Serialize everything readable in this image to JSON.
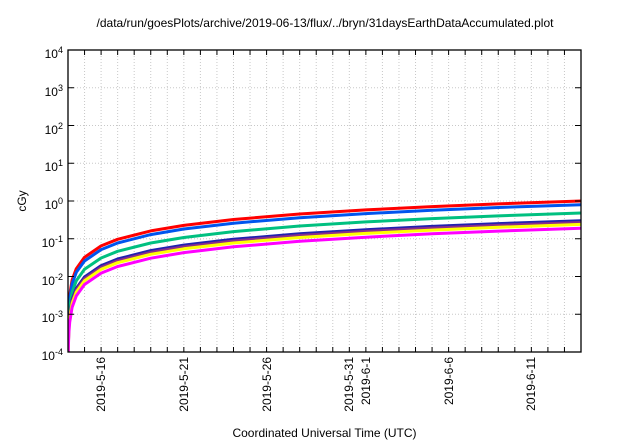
{
  "window": {
    "background_color": "#ffffff"
  },
  "chart_data": {
    "type": "line",
    "title": "/data/run/goesPlots/archive/2019-06-13/flux/../bryn/31daysEarthDataAccumulated.plot",
    "xlabel": "Coordinated Universal Time (UTC)",
    "ylabel": "cGy",
    "legend": "none",
    "grid": {
      "vertical_interval_days": 1,
      "horizontal_per_decade": true,
      "style": "dotted",
      "color": "#c8c8c8"
    },
    "x_axis": {
      "scale": "linear-time",
      "start": "2019-05-14",
      "end": "2019-06-14",
      "span_days": 31,
      "minor_tick_interval_days": 1,
      "major_ticks": [
        {
          "day": 2,
          "label": "2019-5-16"
        },
        {
          "day": 7,
          "label": "2019-5-21"
        },
        {
          "day": 12,
          "label": "2019-5-26"
        },
        {
          "day": 17,
          "label": "2019-5-31"
        },
        {
          "day": 18,
          "label": "2019-6-1"
        },
        {
          "day": 23,
          "label": "2019-6-6"
        },
        {
          "day": 28,
          "label": "2019-6-11"
        }
      ]
    },
    "y_axis": {
      "scale": "log10",
      "min": 0.0001,
      "max": 10000,
      "tick_exponents": [
        4,
        3,
        2,
        1,
        0,
        -1,
        -2,
        -3,
        -4
      ],
      "tick_label_base": "10"
    },
    "series": [
      {
        "name": "red",
        "color": "#ff0000",
        "final_cGy": 1.0,
        "points": [
          [
            0.003,
            0.0001
          ],
          [
            0.01,
            0.000323
          ],
          [
            0.05,
            0.00161
          ],
          [
            0.1,
            0.00323
          ],
          [
            0.25,
            0.00806
          ],
          [
            0.5,
            0.0161
          ],
          [
            1,
            0.0323
          ],
          [
            2,
            0.0645
          ],
          [
            3,
            0.0968
          ],
          [
            5,
            0.161
          ],
          [
            7,
            0.226
          ],
          [
            10,
            0.323
          ],
          [
            14,
            0.452
          ],
          [
            18,
            0.581
          ],
          [
            22,
            0.71
          ],
          [
            26,
            0.839
          ],
          [
            31,
            1.0
          ]
        ]
      },
      {
        "name": "blue",
        "color": "#0055ee",
        "final_cGy": 0.8,
        "points": [
          [
            0.003,
            0.0001
          ],
          [
            0.01,
            0.000258
          ],
          [
            0.05,
            0.00129
          ],
          [
            0.1,
            0.00258
          ],
          [
            0.25,
            0.00645
          ],
          [
            0.5,
            0.0129
          ],
          [
            1,
            0.0258
          ],
          [
            2,
            0.0516
          ],
          [
            3,
            0.0774
          ],
          [
            5,
            0.129
          ],
          [
            7,
            0.181
          ],
          [
            10,
            0.258
          ],
          [
            14,
            0.361
          ],
          [
            18,
            0.465
          ],
          [
            22,
            0.568
          ],
          [
            26,
            0.671
          ],
          [
            31,
            0.8
          ]
        ]
      },
      {
        "name": "green",
        "color": "#00c080",
        "final_cGy": 0.48,
        "points": [
          [
            0.003,
            0.0001
          ],
          [
            0.01,
            0.000155
          ],
          [
            0.05,
            0.000774
          ],
          [
            0.1,
            0.00155
          ],
          [
            0.25,
            0.00387
          ],
          [
            0.5,
            0.00774
          ],
          [
            1,
            0.0155
          ],
          [
            2,
            0.031
          ],
          [
            3,
            0.0465
          ],
          [
            5,
            0.0774
          ],
          [
            7,
            0.108
          ],
          [
            10,
            0.155
          ],
          [
            14,
            0.217
          ],
          [
            18,
            0.279
          ],
          [
            22,
            0.341
          ],
          [
            26,
            0.403
          ],
          [
            31,
            0.48
          ]
        ]
      },
      {
        "name": "navy",
        "color": "#2020b0",
        "final_cGy": 0.3,
        "points": [
          [
            0.003,
            0.0001
          ],
          [
            0.01,
            0.0001
          ],
          [
            0.05,
            0.000484
          ],
          [
            0.1,
            0.000968
          ],
          [
            0.25,
            0.00242
          ],
          [
            0.5,
            0.00484
          ],
          [
            1,
            0.00968
          ],
          [
            2,
            0.0194
          ],
          [
            3,
            0.029
          ],
          [
            5,
            0.0484
          ],
          [
            7,
            0.0677
          ],
          [
            10,
            0.0968
          ],
          [
            14,
            0.135
          ],
          [
            18,
            0.174
          ],
          [
            22,
            0.213
          ],
          [
            26,
            0.252
          ],
          [
            31,
            0.3
          ]
        ]
      },
      {
        "name": "purple",
        "color": "#8b2d8b",
        "final_cGy": 0.27,
        "points": [
          [
            0.003,
            0.0001
          ],
          [
            0.01,
            0.0001
          ],
          [
            0.05,
            0.000435
          ],
          [
            0.1,
            0.000871
          ],
          [
            0.25,
            0.00218
          ],
          [
            0.5,
            0.00435
          ],
          [
            1,
            0.00871
          ],
          [
            2,
            0.0174
          ],
          [
            3,
            0.0261
          ],
          [
            5,
            0.0435
          ],
          [
            7,
            0.061
          ],
          [
            10,
            0.0871
          ],
          [
            14,
            0.122
          ],
          [
            18,
            0.157
          ],
          [
            22,
            0.192
          ],
          [
            26,
            0.226
          ],
          [
            31,
            0.27
          ]
        ]
      },
      {
        "name": "yellow",
        "color": "#ffff00",
        "final_cGy": 0.24,
        "points": [
          [
            0.003,
            0.0001
          ],
          [
            0.01,
            0.0001
          ],
          [
            0.05,
            0.000387
          ],
          [
            0.1,
            0.000774
          ],
          [
            0.25,
            0.00194
          ],
          [
            0.5,
            0.00387
          ],
          [
            1,
            0.00774
          ],
          [
            2,
            0.0155
          ],
          [
            3,
            0.0232
          ],
          [
            5,
            0.0387
          ],
          [
            7,
            0.0542
          ],
          [
            10,
            0.0774
          ],
          [
            14,
            0.108
          ],
          [
            18,
            0.139
          ],
          [
            22,
            0.17
          ],
          [
            26,
            0.201
          ],
          [
            31,
            0.24
          ]
        ]
      },
      {
        "name": "magenta",
        "color": "#ff00ff",
        "final_cGy": 0.19,
        "points": [
          [
            0.003,
            0.0001
          ],
          [
            0.01,
            0.0001
          ],
          [
            0.05,
            0.000306
          ],
          [
            0.1,
            0.000613
          ],
          [
            0.25,
            0.00153
          ],
          [
            0.5,
            0.00306
          ],
          [
            1,
            0.00613
          ],
          [
            2,
            0.0123
          ],
          [
            3,
            0.0184
          ],
          [
            5,
            0.0306
          ],
          [
            7,
            0.0429
          ],
          [
            10,
            0.0613
          ],
          [
            14,
            0.0858
          ],
          [
            18,
            0.11
          ],
          [
            22,
            0.135
          ],
          [
            26,
            0.159
          ],
          [
            31,
            0.19
          ]
        ]
      }
    ]
  }
}
